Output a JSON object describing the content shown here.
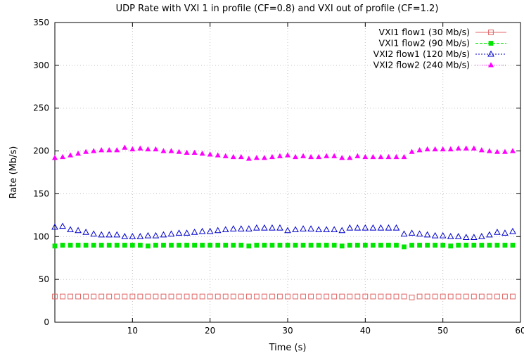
{
  "chart_data": {
    "type": "scatter",
    "title": "UDP Rate with VXI 1 in profile (CF=0.8) and VXI out of profile (CF=1.2)",
    "xlabel": "Time (s)",
    "ylabel": "Rate (Mb/s)",
    "xlim": [
      0,
      60
    ],
    "ylim": [
      0,
      350
    ],
    "xticks": [
      10,
      20,
      30,
      40,
      50,
      60
    ],
    "yticks": [
      0,
      50,
      100,
      150,
      200,
      250,
      300,
      350
    ],
    "grid": true,
    "legend_position": "top-right",
    "x": [
      0,
      1,
      2,
      3,
      4,
      5,
      6,
      7,
      8,
      9,
      10,
      11,
      12,
      13,
      14,
      15,
      16,
      17,
      18,
      19,
      20,
      21,
      22,
      23,
      24,
      25,
      26,
      27,
      28,
      29,
      30,
      31,
      32,
      33,
      34,
      35,
      36,
      37,
      38,
      39,
      40,
      41,
      42,
      43,
      44,
      45,
      46,
      47,
      48,
      49,
      50,
      51,
      52,
      53,
      54,
      55,
      56,
      57,
      58,
      59
    ],
    "series": [
      {
        "name": "VXI1 flow1 (30 Mb/s)",
        "marker": "open-square",
        "color": "#e06666",
        "values": [
          30,
          30,
          30,
          30,
          30,
          30,
          30,
          30,
          30,
          30,
          30,
          30,
          30,
          30,
          30,
          30,
          30,
          30,
          30,
          30,
          30,
          30,
          30,
          30,
          30,
          30,
          30,
          30,
          30,
          30,
          30,
          30,
          30,
          30,
          30,
          30,
          30,
          30,
          30,
          30,
          30,
          30,
          30,
          30,
          30,
          30,
          29,
          30,
          30,
          30,
          30,
          30,
          30,
          30,
          30,
          30,
          30,
          30,
          30,
          30
        ]
      },
      {
        "name": "VXI1 flow2 (90 Mb/s)",
        "marker": "filled-square",
        "color": "#00e600",
        "values": [
          89,
          90,
          90,
          90,
          90,
          90,
          90,
          90,
          90,
          90,
          90,
          90,
          89,
          90,
          90,
          90,
          90,
          90,
          90,
          90,
          90,
          90,
          90,
          90,
          90,
          89,
          90,
          90,
          90,
          90,
          90,
          90,
          90,
          90,
          90,
          90,
          90,
          89,
          90,
          90,
          90,
          90,
          90,
          90,
          90,
          88,
          90,
          90,
          90,
          90,
          90,
          89,
          90,
          90,
          90,
          90,
          90,
          90,
          90,
          90
        ]
      },
      {
        "name": "VXI2 flow1 (120 Mb/s)",
        "marker": "open-triangle",
        "color": "#0000cc",
        "values": [
          111,
          112,
          108,
          107,
          105,
          103,
          102,
          102,
          102,
          100,
          100,
          100,
          101,
          101,
          102,
          103,
          104,
          104,
          105,
          106,
          106,
          107,
          108,
          109,
          109,
          109,
          110,
          110,
          110,
          110,
          107,
          108,
          109,
          109,
          108,
          108,
          108,
          107,
          110,
          110,
          110,
          110,
          110,
          110,
          110,
          103,
          104,
          103,
          102,
          101,
          101,
          100,
          100,
          99,
          99,
          100,
          102,
          105,
          104,
          106
        ]
      },
      {
        "name": "VXI2 flow2 (240 Mb/s)",
        "marker": "filled-triangle",
        "color": "#ff00ff",
        "values": [
          192,
          193,
          195,
          197,
          199,
          200,
          201,
          201,
          201,
          204,
          202,
          203,
          202,
          202,
          200,
          200,
          199,
          198,
          198,
          197,
          196,
          195,
          194,
          193,
          193,
          191,
          192,
          192,
          193,
          194,
          195,
          193,
          194,
          193,
          193,
          194,
          194,
          192,
          192,
          194,
          193,
          193,
          193,
          193,
          193,
          193,
          199,
          201,
          202,
          202,
          202,
          202,
          203,
          203,
          203,
          201,
          200,
          199,
          199,
          200
        ]
      }
    ]
  }
}
